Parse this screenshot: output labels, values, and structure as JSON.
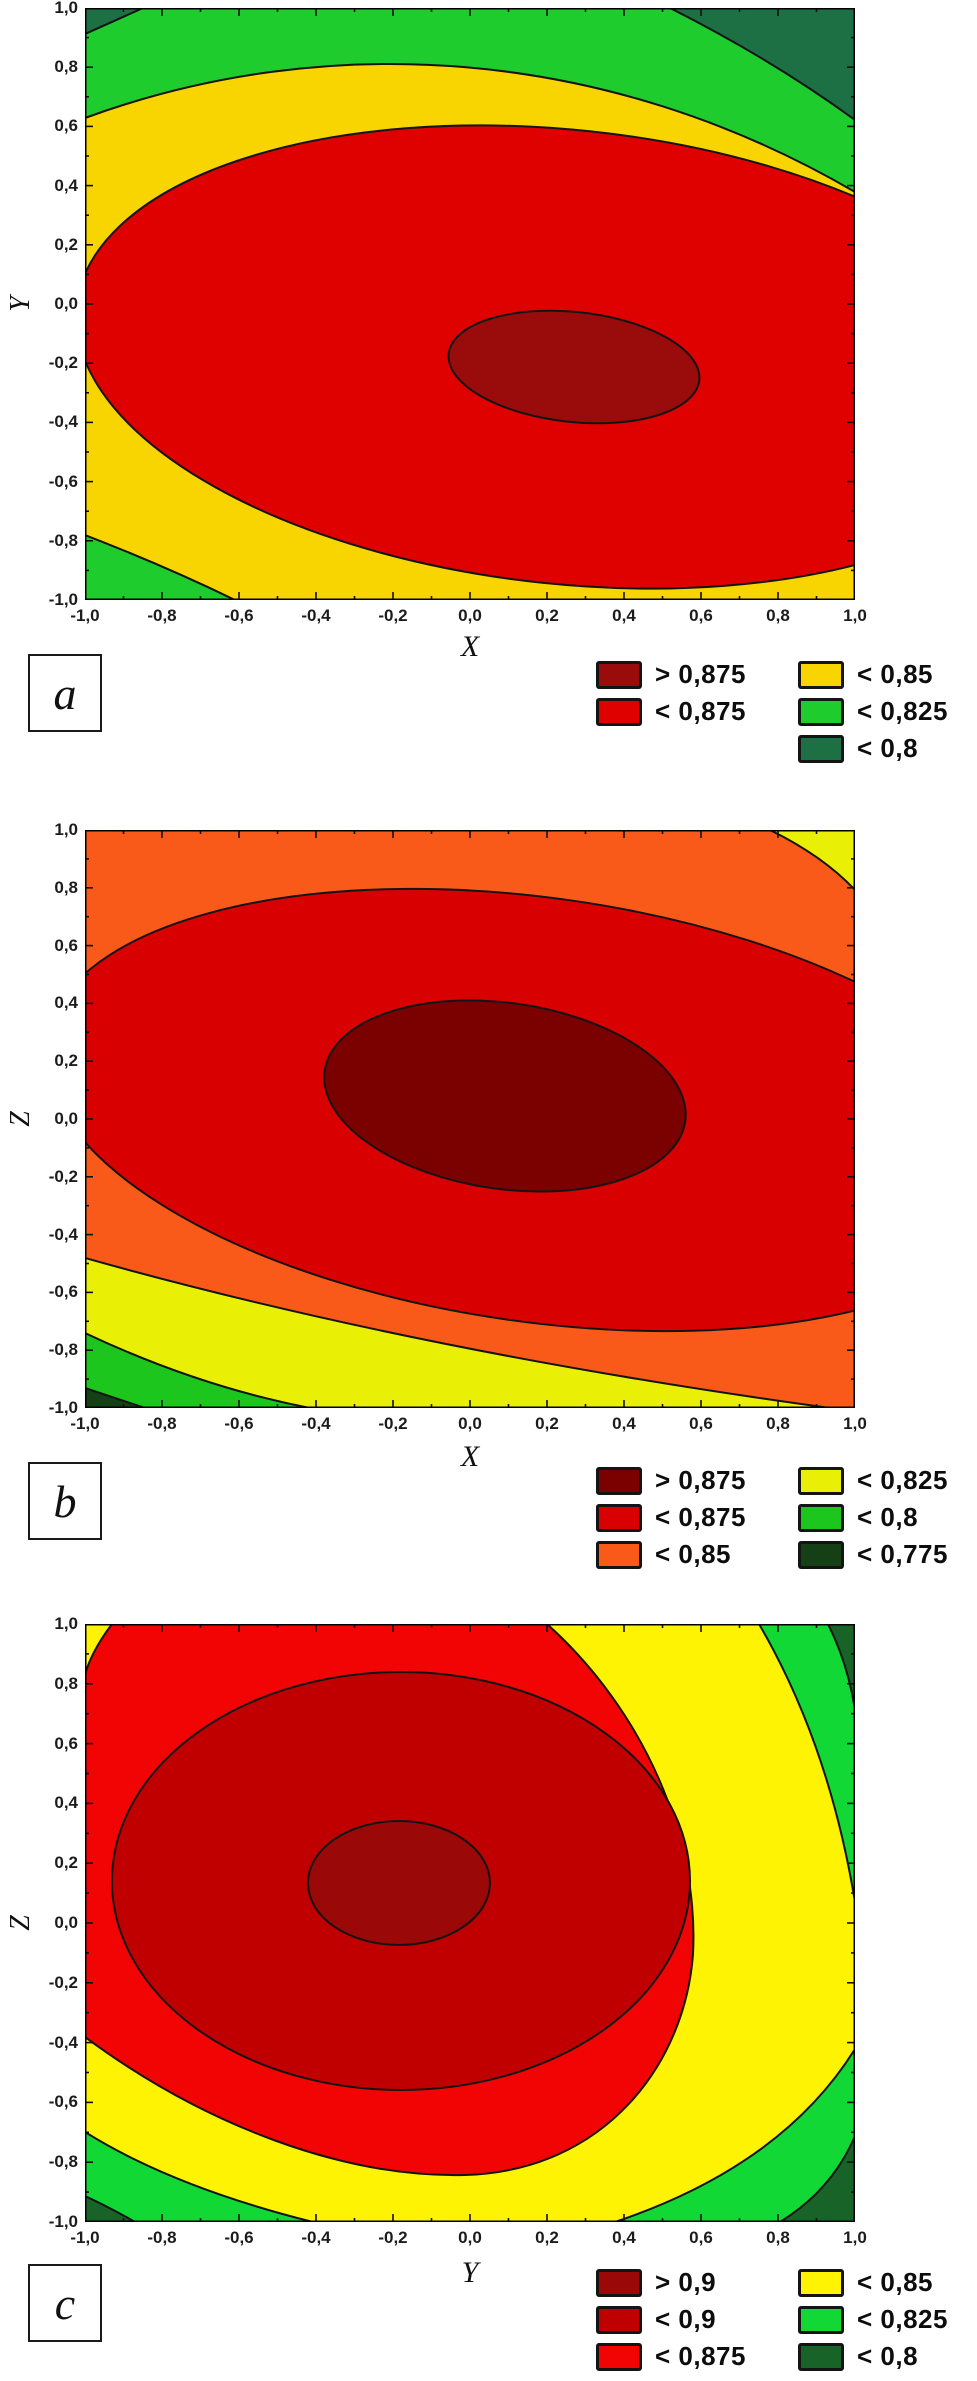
{
  "panels": [
    {
      "letter": "a",
      "xlabel": "X",
      "ylabel": "Y",
      "x_tick_labels": [
        "-1,0",
        "-0,8",
        "-0,6",
        "-0,4",
        "-0,2",
        "0,0",
        "0,2",
        "0,4",
        "0,6",
        "0,8",
        "1,0"
      ],
      "y_tick_labels": [
        "1,0",
        "0,8",
        "0,6",
        "0,4",
        "0,2",
        "0,0",
        "-0,2",
        "-0,4",
        "-0,6",
        "-0,8",
        "-1,0"
      ],
      "colors": {
        "dark_red": "#9A0B0B",
        "red": "#DF0000",
        "yellow": "#F8D400",
        "green": "#1FCC2E",
        "dark_green": "#1D6F44"
      },
      "legend": {
        "columns": [
          [
            {
              "label": "> 0,875",
              "color": "#9A0B0B"
            },
            {
              "label": "< 0,875",
              "color": "#DF0000"
            }
          ],
          [
            {
              "label": "< 0,85",
              "color": "#F8D400"
            },
            {
              "label": "< 0,825",
              "color": "#1FCC2E"
            },
            {
              "label": "< 0,8",
              "color": "#1D6F44"
            }
          ]
        ]
      }
    },
    {
      "letter": "b",
      "xlabel": "X",
      "ylabel": "Z",
      "x_tick_labels": [
        "-1,0",
        "-0,8",
        "-0,6",
        "-0,4",
        "-0,2",
        "0,0",
        "0,2",
        "0,4",
        "0,6",
        "0,8",
        "1,0"
      ],
      "y_tick_labels": [
        "1,0",
        "0,8",
        "0,6",
        "0,4",
        "0,2",
        "0,0",
        "-0,2",
        "-0,4",
        "-0,6",
        "-0,8",
        "-1,0"
      ],
      "colors": {
        "dark_red": "#7B0000",
        "red": "#D80000",
        "orange": "#FA5A19",
        "yellow": "#E9F005",
        "green": "#1CC61C",
        "dark_green": "#153F15"
      },
      "legend": {
        "columns": [
          [
            {
              "label": "> 0,875",
              "color": "#7B0000"
            },
            {
              "label": "< 0,875",
              "color": "#D80000"
            },
            {
              "label": "< 0,85",
              "color": "#FA5A19"
            }
          ],
          [
            {
              "label": "< 0,825",
              "color": "#E9F005"
            },
            {
              "label": "< 0,8",
              "color": "#1CC61C"
            },
            {
              "label": "< 0,775",
              "color": "#153F15"
            }
          ]
        ]
      }
    },
    {
      "letter": "c",
      "xlabel": "Y",
      "ylabel": "Z",
      "x_tick_labels": [
        "-1,0",
        "-0,8",
        "-0,6",
        "-0,4",
        "-0,2",
        "0,0",
        "0,2",
        "0,4",
        "0,6",
        "0,8",
        "1,0"
      ],
      "y_tick_labels": [
        "1,0",
        "0,8",
        "0,6",
        "0,4",
        "0,2",
        "0,0",
        "-0,2",
        "-0,4",
        "-0,6",
        "-0,8",
        "-1,0"
      ],
      "colors": {
        "dark_red": "#9A0808",
        "medium_red": "#C00000",
        "red": "#F20404",
        "yellow": "#FDF303",
        "green": "#11D834",
        "dark_green": "#176328"
      },
      "legend": {
        "columns": [
          [
            {
              "label": "> 0,9",
              "color": "#9A0808"
            },
            {
              "label": "< 0,9",
              "color": "#C00000"
            },
            {
              "label": "< 0,875",
              "color": "#F20404"
            }
          ],
          [
            {
              "label": "< 0,85",
              "color": "#FDF303"
            },
            {
              "label": "< 0,825",
              "color": "#11D834"
            },
            {
              "label": "< 0,8",
              "color": "#176328"
            }
          ]
        ]
      }
    }
  ],
  "chart_data": [
    {
      "type": "contour",
      "panel": "a",
      "xlabel": "X",
      "ylabel": "Y",
      "x_range": [
        -1,
        1
      ],
      "y_range": [
        -1,
        1
      ],
      "x_ticks": [
        -1,
        -0.8,
        -0.6,
        -0.4,
        -0.2,
        0,
        0.2,
        0.4,
        0.6,
        0.8,
        1
      ],
      "y_ticks": [
        -1,
        -0.8,
        -0.6,
        -0.4,
        -0.2,
        0,
        0.2,
        0.4,
        0.6,
        0.8,
        1
      ],
      "decimal_separator": "comma",
      "levels": [
        {
          "label": "> 0,875",
          "value": 0.875,
          "relation": ">",
          "color": "#9A0B0B"
        },
        {
          "label": "< 0,875",
          "value": 0.875,
          "relation": "<",
          "color": "#DF0000"
        },
        {
          "label": "< 0,85",
          "value": 0.85,
          "relation": "<",
          "color": "#F8D400"
        },
        {
          "label": "< 0,825",
          "value": 0.825,
          "relation": "<",
          "color": "#1FCC2E"
        },
        {
          "label": "< 0,8",
          "value": 0.8,
          "relation": "<",
          "color": "#1D6F44"
        }
      ],
      "peak_region": {
        "center_x": 0.25,
        "center_y": -0.2,
        "label": "> 0,875"
      },
      "shape": "nested ellipses elongated along X, slight clockwise tilt; dark-green patches in top-left, top-right and bottom-left corners"
    },
    {
      "type": "contour",
      "panel": "b",
      "xlabel": "X",
      "ylabel": "Z",
      "x_range": [
        -1,
        1
      ],
      "y_range": [
        -1,
        1
      ],
      "x_ticks": [
        -1,
        -0.8,
        -0.6,
        -0.4,
        -0.2,
        0,
        0.2,
        0.4,
        0.6,
        0.8,
        1
      ],
      "y_ticks": [
        -1,
        -0.8,
        -0.6,
        -0.4,
        -0.2,
        0,
        0.2,
        0.4,
        0.6,
        0.8,
        1
      ],
      "decimal_separator": "comma",
      "levels": [
        {
          "label": "> 0,875",
          "value": 0.875,
          "relation": ">",
          "color": "#7B0000"
        },
        {
          "label": "< 0,875",
          "value": 0.875,
          "relation": "<",
          "color": "#D80000"
        },
        {
          "label": "< 0,85",
          "value": 0.85,
          "relation": "<",
          "color": "#FA5A19"
        },
        {
          "label": "< 0,825",
          "value": 0.825,
          "relation": "<",
          "color": "#E9F005"
        },
        {
          "label": "< 0,8",
          "value": 0.8,
          "relation": "<",
          "color": "#1CC61C"
        },
        {
          "label": "< 0,775",
          "value": 0.775,
          "relation": "<",
          "color": "#153F15"
        }
      ],
      "peak_region": {
        "center_x": 0.1,
        "center_y": 0.08,
        "label": "> 0,875"
      },
      "shape": "tilted ellipses descending to the right; orange band across top, yellow/green/dark-green bands toward bottom-left corner, yellow sliver top-right"
    },
    {
      "type": "contour",
      "panel": "c",
      "xlabel": "Y",
      "ylabel": "Z",
      "x_range": [
        -1,
        1
      ],
      "y_range": [
        -1,
        1
      ],
      "x_ticks": [
        -1,
        -0.8,
        -0.6,
        -0.4,
        -0.2,
        0,
        0.2,
        0.4,
        0.6,
        0.8,
        1
      ],
      "y_ticks": [
        -1,
        -0.8,
        -0.6,
        -0.4,
        -0.2,
        0,
        0.2,
        0.4,
        0.6,
        0.8,
        1
      ],
      "decimal_separator": "comma",
      "levels": [
        {
          "label": "> 0,9",
          "value": 0.9,
          "relation": ">",
          "color": "#9A0808"
        },
        {
          "label": "< 0,9",
          "value": 0.9,
          "relation": "<",
          "color": "#C00000"
        },
        {
          "label": "< 0,875",
          "value": 0.875,
          "relation": "<",
          "color": "#F20404"
        },
        {
          "label": "< 0,85",
          "value": 0.85,
          "relation": "<",
          "color": "#FDF303"
        },
        {
          "label": "< 0,825",
          "value": 0.825,
          "relation": "<",
          "color": "#11D834"
        },
        {
          "label": "< 0,8",
          "value": 0.8,
          "relation": "<",
          "color": "#176328"
        }
      ],
      "peak_region": {
        "center_x": -0.17,
        "center_y": 0.12,
        "label": "> 0,9"
      },
      "shape": "nearly concentric rings centered left of middle; yellow outer ring, green band and dark-green patches in top-right, bottom-right and bottom-left corners"
    }
  ]
}
